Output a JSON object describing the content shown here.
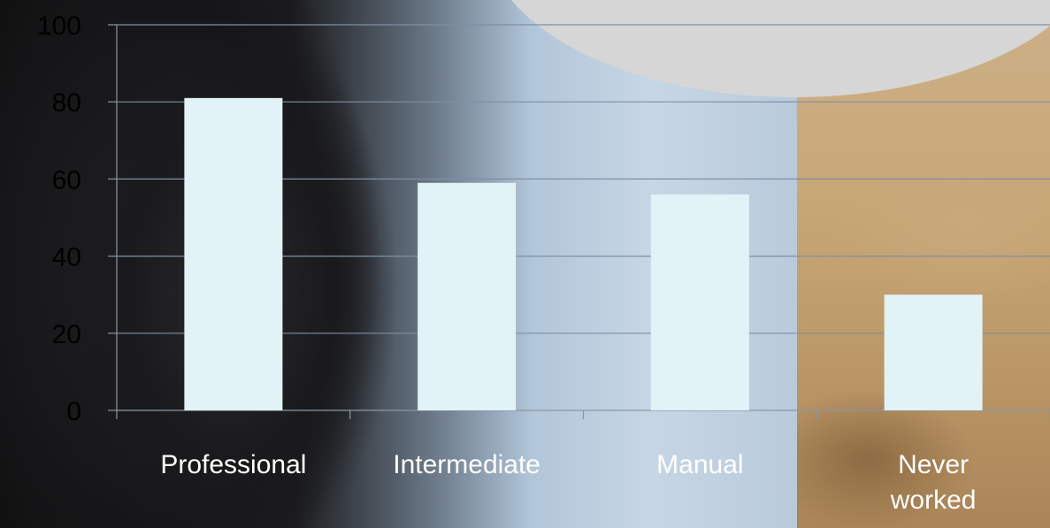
{
  "chart_data": {
    "type": "bar",
    "title": "",
    "xlabel": "",
    "ylabel": "",
    "categories": [
      "Professional",
      "Intermediate",
      "Manual",
      "Never worked"
    ],
    "values": [
      81,
      59,
      56,
      30
    ],
    "ylim": [
      0,
      100
    ],
    "yticks": [
      0,
      20,
      40,
      60,
      80,
      100
    ],
    "ytick_labels": [
      "0",
      "20",
      "40",
      "60",
      "80",
      "100"
    ],
    "category_label_lines": [
      [
        "Professional"
      ],
      [
        "Intermediate"
      ],
      [
        "Manual"
      ],
      [
        "Never",
        "worked"
      ]
    ],
    "grid": true,
    "legend": "none",
    "colors": {
      "bar": "#e2f3f8",
      "gridline": "#7f8fa3",
      "axis": "#8a96a6",
      "ytick_text": "#000000",
      "xtick_text": "#ffffff"
    }
  }
}
